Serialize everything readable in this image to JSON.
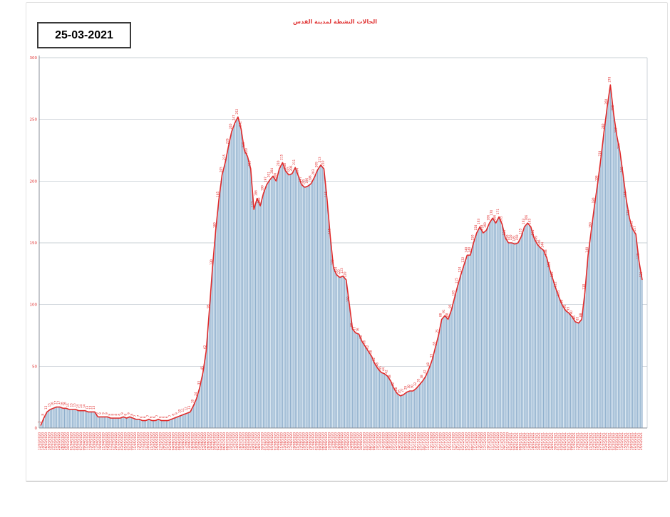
{
  "header": {
    "date_label": "25-03-2021"
  },
  "colors": {
    "accent_red": "#e02a2a",
    "bar_stroke": "#8fafcc",
    "area_fill": "#dce8f2",
    "gridline": "#b9c0c9"
  },
  "chart_data": {
    "type": "area",
    "title": "الحالات النشطة لمدينة القدس",
    "xlabel": "",
    "ylabel": "",
    "ylim": [
      0,
      300
    ],
    "yticks": [
      0,
      50,
      100,
      150,
      200,
      250,
      300
    ],
    "grid": true,
    "legend": "none",
    "x": [
      "12/03/2020",
      "14/03/2020",
      "16/03/2020",
      "18/03/2020",
      "20/03/2020",
      "22/03/2020",
      "24/03/2020",
      "26/03/2020",
      "28/03/2020",
      "30/03/2020",
      "01/04/2020",
      "03/04/2020",
      "05/04/2020",
      "07/04/2020",
      "09/04/2020",
      "11/04/2020",
      "13/04/2020",
      "15/04/2020",
      "17/04/2020",
      "19/04/2020",
      "21/04/2020",
      "23/04/2020",
      "25/04/2020",
      "27/04/2020",
      "29/04/2020",
      "01/05/2020",
      "03/05/2020",
      "05/05/2020",
      "07/05/2020",
      "09/05/2020",
      "11/05/2020",
      "13/05/2020",
      "15/05/2020",
      "17/05/2020",
      "19/05/2020",
      "21/05/2020",
      "23/05/2020",
      "25/05/2020",
      "27/05/2020",
      "29/05/2020",
      "31/05/2020",
      "02/06/2020",
      "04/06/2020",
      "06/06/2020",
      "08/06/2020",
      "10/06/2020",
      "12/06/2020",
      "14/06/2020",
      "16/06/2020",
      "18/06/2020",
      "20/06/2020",
      "22/06/2020",
      "24/06/2020",
      "26/06/2020",
      "28/06/2020",
      "30/06/2020",
      "02/07/2020",
      "04/07/2020",
      "06/07/2020",
      "08/07/2020",
      "10/07/2020",
      "12/07/2020",
      "14/07/2020",
      "16/07/2020",
      "18/07/2020",
      "20/07/2020",
      "22/07/2020",
      "24/07/2020",
      "26/07/2020",
      "28/07/2020",
      "30/07/2020",
      "01/08/2020",
      "03/08/2020",
      "05/08/2020",
      "07/08/2020",
      "09/08/2020",
      "11/08/2020",
      "13/08/2020",
      "15/08/2020",
      "17/08/2020",
      "19/08/2020",
      "21/08/2020",
      "23/08/2020",
      "25/08/2020",
      "27/08/2020",
      "29/08/2020",
      "31/08/2020",
      "02/09/2020",
      "04/09/2020",
      "06/09/2020",
      "08/09/2020",
      "10/09/2020",
      "12/09/2020",
      "14/09/2020",
      "16/09/2020",
      "18/09/2020",
      "20/09/2020",
      "22/09/2020",
      "24/09/2020",
      "26/09/2020",
      "28/09/2020",
      "30/09/2020",
      "02/10/2020",
      "04/10/2020",
      "06/10/2020",
      "08/10/2020",
      "10/10/2020",
      "12/10/2020",
      "14/10/2020",
      "16/10/2020",
      "18/10/2020",
      "20/10/2020",
      "22/10/2020",
      "24/10/2020",
      "26/10/2020",
      "28/10/2020",
      "30/10/2020",
      "01/11/2020",
      "03/11/2020",
      "05/11/2020",
      "07/11/2020",
      "09/11/2020",
      "11/11/2020",
      "13/11/2020",
      "15/11/2020",
      "17/11/2020",
      "19/11/2020",
      "21/11/2020",
      "23/11/2020",
      "25/11/2020",
      "27/11/2020",
      "29/11/2020",
      "01/12/2020",
      "03/12/2020",
      "05/12/2020",
      "07/12/2020",
      "09/12/2020",
      "11/12/2020",
      "13/12/2020",
      "15/12/2020",
      "17/12/2020",
      "19/12/2020",
      "21/12/2020",
      "23/12/2020",
      "25/12/2020",
      "27/12/2020",
      "29/12/2020",
      "31/12/2020",
      "02/01/2021",
      "04/01/2021",
      "06/01/2021",
      "08/01/2021",
      "10/01/2021",
      "12/01/2021",
      "14/01/2021",
      "16/01/2021",
      "18/01/2021",
      "20/01/2021",
      "22/01/2021",
      "24/01/2021",
      "26/01/2021",
      "28/01/2021",
      "30/01/2021",
      "01/02/2021",
      "03/02/2021",
      "05/02/2021",
      "07/02/2021",
      "09/02/2021",
      "11/02/2021",
      "13/02/2021",
      "15/02/2021",
      "17/02/2021",
      "19/02/2021",
      "21/02/2021",
      "23/02/2021",
      "25/02/2021",
      "27/02/2021",
      "01/03/2021",
      "03/03/2021",
      "05/03/2021",
      "07/03/2021",
      "09/03/2021",
      "11/03/2021",
      "13/03/2021",
      "15/03/2021",
      "17/03/2021",
      "19/03/2021",
      "21/03/2021",
      "23/03/2021",
      "25/03/2021"
    ],
    "values": [
      2,
      8,
      13,
      15,
      16,
      17,
      17,
      16,
      16,
      15,
      15,
      15,
      14,
      14,
      14,
      13,
      13,
      13,
      9,
      9,
      9,
      9,
      8,
      8,
      8,
      8,
      9,
      8,
      9,
      8,
      7,
      7,
      6,
      6,
      7,
      6,
      6,
      7,
      6,
      6,
      6,
      7,
      8,
      9,
      10,
      11,
      12,
      13,
      18,
      24,
      33,
      45,
      62,
      95,
      130,
      160,
      185,
      205,
      215,
      228,
      240,
      247,
      252,
      242,
      225,
      220,
      210,
      177,
      186,
      180,
      190,
      197,
      201,
      204,
      200,
      210,
      215,
      208,
      205,
      206,
      211,
      204,
      197,
      195,
      196,
      198,
      203,
      209,
      213,
      210,
      185,
      155,
      130,
      124,
      122,
      123,
      120,
      100,
      80,
      77,
      76,
      70,
      66,
      62,
      58,
      52,
      48,
      45,
      44,
      42,
      38,
      32,
      28,
      26,
      27,
      29,
      30,
      30,
      32,
      35,
      38,
      42,
      48,
      55,
      65,
      75,
      88,
      91,
      88,
      95,
      105,
      115,
      124,
      132,
      140,
      140,
      150,
      158,
      163,
      158,
      160,
      166,
      170,
      166,
      171,
      165,
      154,
      150,
      150,
      149,
      150,
      155,
      163,
      166,
      163,
      154,
      149,
      146,
      144,
      138,
      128,
      120,
      112,
      105,
      99,
      95,
      93,
      90,
      86,
      85,
      88,
      110,
      140,
      160,
      180,
      198,
      218,
      240,
      260,
      278,
      255,
      237,
      224,
      205,
      185,
      170,
      161,
      157,
      135,
      120
    ]
  }
}
